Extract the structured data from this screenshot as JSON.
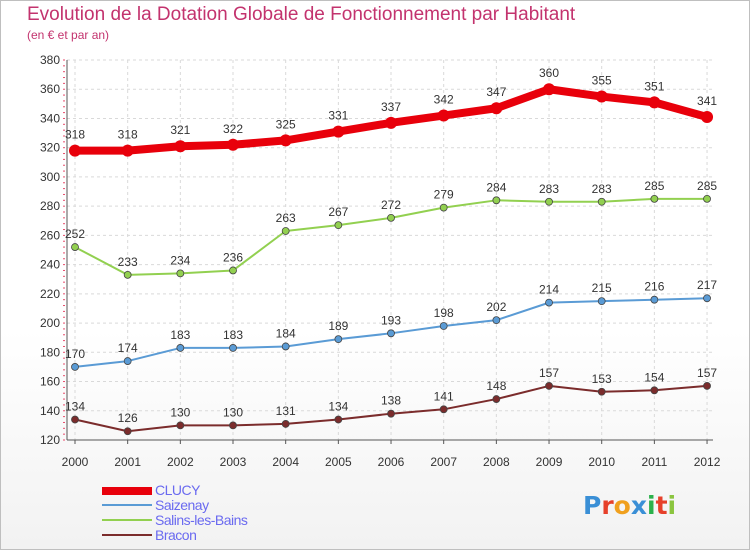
{
  "header": {
    "title": "Evolution de la Dotation Globale de Fonctionnement par Habitant",
    "subtitle": "(en € et par an)"
  },
  "logo": {
    "text": "Proxiti",
    "colors": [
      "#3a8fd6",
      "#e6402a",
      "#f0a01e",
      "#3a8fd6",
      "#2bb14b",
      "#e6402a",
      "#8bc53f"
    ]
  },
  "chart_data": {
    "type": "line",
    "x": [
      "2000",
      "2001",
      "2002",
      "2003",
      "2004",
      "2005",
      "2006",
      "2007",
      "2008",
      "2009",
      "2010",
      "2011",
      "2012"
    ],
    "ylim": [
      120,
      380
    ],
    "yticks": [
      120,
      140,
      160,
      180,
      200,
      220,
      240,
      260,
      280,
      300,
      320,
      340,
      360,
      380
    ],
    "grid": true,
    "legend_position": "bottom-left",
    "series": [
      {
        "name": "CLUCY",
        "color": "#e8000b",
        "weight": "bold",
        "values": [
          318,
          318,
          321,
          322,
          325,
          331,
          337,
          342,
          347,
          360,
          355,
          351,
          341
        ]
      },
      {
        "name": "Saizenay",
        "color": "#5a9bd5",
        "weight": "normal",
        "values": [
          170,
          174,
          183,
          183,
          184,
          189,
          193,
          198,
          202,
          214,
          215,
          216,
          217
        ]
      },
      {
        "name": "Salins-les-Bains",
        "color": "#92d050",
        "weight": "normal",
        "values": [
          252,
          233,
          234,
          236,
          263,
          267,
          272,
          279,
          284,
          283,
          283,
          285,
          285
        ]
      },
      {
        "name": "Bracon",
        "color": "#7b2c2c",
        "weight": "normal",
        "values": [
          134,
          126,
          130,
          130,
          131,
          134,
          138,
          141,
          148,
          157,
          153,
          154,
          157
        ]
      }
    ]
  }
}
